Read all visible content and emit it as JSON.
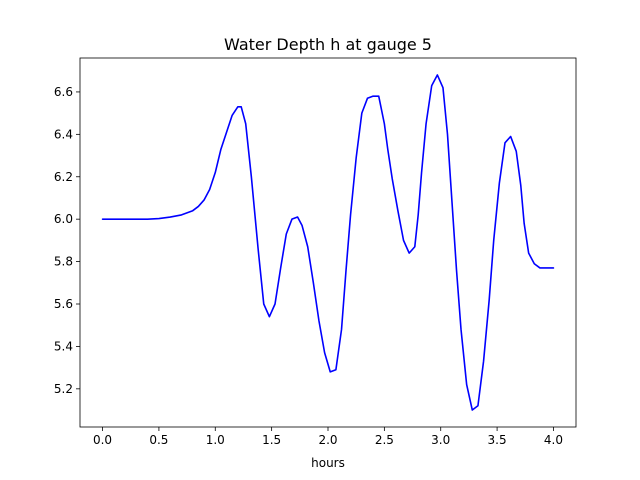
{
  "chart_data": {
    "type": "line",
    "title": "Water Depth h at gauge 5",
    "xlabel": "hours",
    "ylabel": "",
    "xlim": [
      -0.2,
      4.2
    ],
    "ylim": [
      5.02,
      6.76
    ],
    "xticks": [
      0.0,
      0.5,
      1.0,
      1.5,
      2.0,
      2.5,
      3.0,
      3.5,
      4.0
    ],
    "xtick_labels": [
      "0.0",
      "0.5",
      "1.0",
      "1.5",
      "2.0",
      "2.5",
      "3.0",
      "3.5",
      "4.0"
    ],
    "yticks": [
      5.2,
      5.4,
      5.6,
      5.8,
      6.0,
      6.2,
      6.4,
      6.6
    ],
    "ytick_labels": [
      "5.2",
      "5.4",
      "5.6",
      "5.8",
      "6.0",
      "6.2",
      "6.4",
      "6.6"
    ],
    "grid": false,
    "series": [
      {
        "color": "#0000ff",
        "x": [
          0.0,
          0.2,
          0.4,
          0.5,
          0.6,
          0.7,
          0.8,
          0.85,
          0.9,
          0.95,
          1.0,
          1.05,
          1.1,
          1.15,
          1.2,
          1.23,
          1.27,
          1.32,
          1.38,
          1.43,
          1.48,
          1.53,
          1.58,
          1.63,
          1.68,
          1.73,
          1.77,
          1.82,
          1.87,
          1.92,
          1.97,
          2.02,
          2.07,
          2.12,
          2.16,
          2.2,
          2.25,
          2.3,
          2.35,
          2.4,
          2.45,
          2.5,
          2.53,
          2.57,
          2.62,
          2.67,
          2.72,
          2.77,
          2.8,
          2.83,
          2.87,
          2.92,
          2.97,
          3.02,
          3.06,
          3.1,
          3.14,
          3.18,
          3.23,
          3.28,
          3.33,
          3.38,
          3.43,
          3.47,
          3.52,
          3.57,
          3.62,
          3.67,
          3.71,
          3.74,
          3.78,
          3.83,
          3.88,
          3.93,
          3.97,
          4.0
        ],
        "y": [
          6.0,
          6.0,
          6.0,
          6.003,
          6.01,
          6.02,
          6.04,
          6.06,
          6.09,
          6.14,
          6.22,
          6.33,
          6.41,
          6.49,
          6.53,
          6.53,
          6.45,
          6.2,
          5.86,
          5.6,
          5.54,
          5.6,
          5.77,
          5.93,
          6.0,
          6.01,
          5.97,
          5.87,
          5.7,
          5.52,
          5.37,
          5.28,
          5.29,
          5.48,
          5.76,
          6.02,
          6.29,
          6.5,
          6.57,
          6.58,
          6.58,
          6.45,
          6.33,
          6.19,
          6.04,
          5.9,
          5.84,
          5.87,
          6.02,
          6.22,
          6.45,
          6.63,
          6.68,
          6.62,
          6.4,
          6.08,
          5.76,
          5.48,
          5.22,
          5.1,
          5.12,
          5.33,
          5.62,
          5.9,
          6.17,
          6.36,
          6.39,
          6.32,
          6.16,
          5.98,
          5.84,
          5.79,
          5.77,
          5.77,
          5.77,
          5.77
        ]
      }
    ]
  }
}
